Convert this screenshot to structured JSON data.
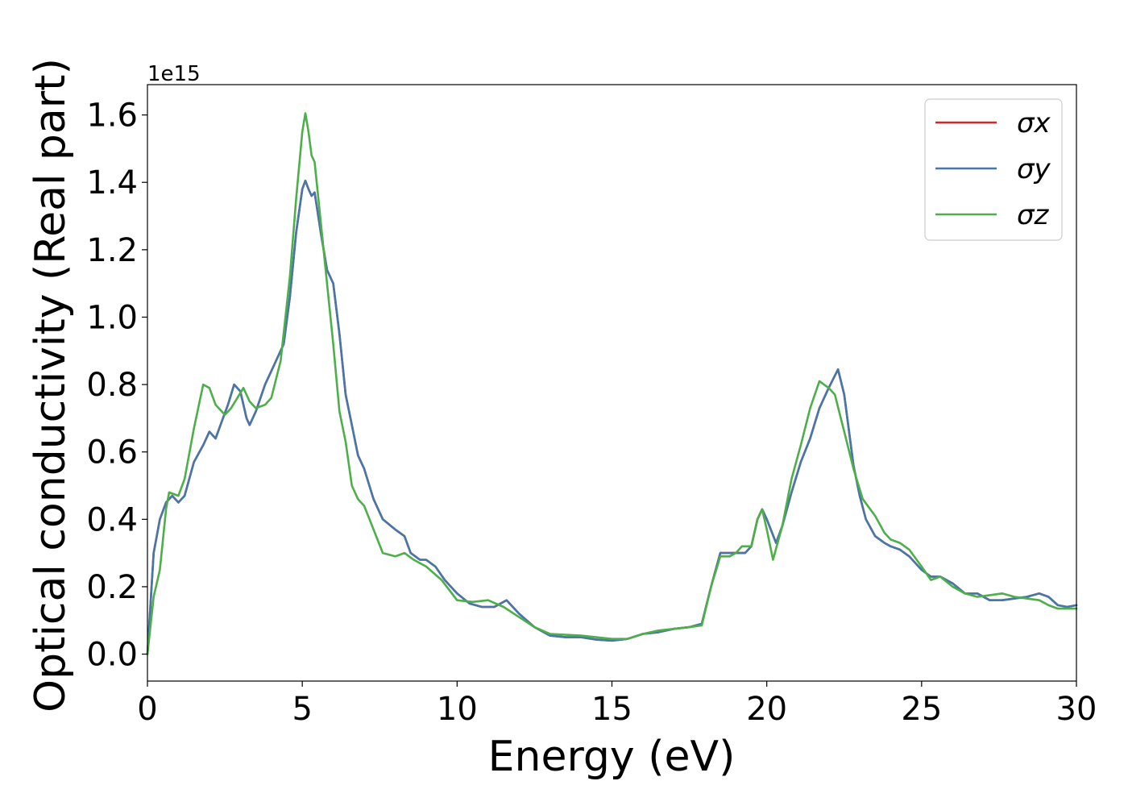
{
  "chart_data": {
    "type": "line",
    "xlabel": "Energy (eV)",
    "ylabel": "Optical conductivity (Real part)",
    "y_offset_text": "1e15",
    "xlim": [
      0,
      30
    ],
    "ylim": [
      -0.08,
      1.69
    ],
    "x_ticks": [
      0,
      5,
      10,
      15,
      20,
      25,
      30
    ],
    "y_ticks": [
      0.0,
      0.2,
      0.4,
      0.6,
      0.8,
      1.0,
      1.2,
      1.4,
      1.6
    ],
    "grid": false,
    "legend_position": "top-right",
    "series": [
      {
        "name": "σx",
        "color": "#d62728",
        "points": [
          [
            0,
            0.0
          ],
          [
            0.2,
            0.3
          ],
          [
            0.4,
            0.4
          ],
          [
            0.6,
            0.45
          ],
          [
            0.8,
            0.47
          ],
          [
            1.0,
            0.45
          ],
          [
            1.2,
            0.47
          ],
          [
            1.5,
            0.57
          ],
          [
            1.8,
            0.62
          ],
          [
            2.0,
            0.66
          ],
          [
            2.2,
            0.64
          ],
          [
            2.4,
            0.69
          ],
          [
            2.6,
            0.74
          ],
          [
            2.8,
            0.8
          ],
          [
            3.0,
            0.78
          ],
          [
            3.2,
            0.7
          ],
          [
            3.3,
            0.68
          ],
          [
            3.5,
            0.72
          ],
          [
            3.8,
            0.8
          ],
          [
            4.1,
            0.86
          ],
          [
            4.4,
            0.92
          ],
          [
            4.6,
            1.06
          ],
          [
            4.8,
            1.25
          ],
          [
            5.0,
            1.38
          ],
          [
            5.1,
            1.405
          ],
          [
            5.2,
            1.38
          ],
          [
            5.3,
            1.36
          ],
          [
            5.4,
            1.37
          ],
          [
            5.6,
            1.25
          ],
          [
            5.8,
            1.14
          ],
          [
            6.0,
            1.1
          ],
          [
            6.2,
            0.95
          ],
          [
            6.4,
            0.77
          ],
          [
            6.6,
            0.68
          ],
          [
            6.8,
            0.59
          ],
          [
            7.0,
            0.55
          ],
          [
            7.3,
            0.46
          ],
          [
            7.6,
            0.4
          ],
          [
            8.0,
            0.37
          ],
          [
            8.3,
            0.35
          ],
          [
            8.5,
            0.3
          ],
          [
            8.8,
            0.28
          ],
          [
            9.0,
            0.28
          ],
          [
            9.3,
            0.26
          ],
          [
            9.6,
            0.22
          ],
          [
            10.0,
            0.18
          ],
          [
            10.4,
            0.15
          ],
          [
            10.8,
            0.14
          ],
          [
            11.2,
            0.14
          ],
          [
            11.6,
            0.16
          ],
          [
            12.0,
            0.12
          ],
          [
            12.5,
            0.08
          ],
          [
            13.0,
            0.055
          ],
          [
            13.5,
            0.05
          ],
          [
            14.0,
            0.05
          ],
          [
            14.5,
            0.043
          ],
          [
            15.0,
            0.04
          ],
          [
            15.5,
            0.045
          ],
          [
            16.0,
            0.06
          ],
          [
            16.5,
            0.065
          ],
          [
            17.0,
            0.075
          ],
          [
            17.5,
            0.08
          ],
          [
            17.9,
            0.09
          ],
          [
            18.2,
            0.2
          ],
          [
            18.5,
            0.3
          ],
          [
            18.8,
            0.3
          ],
          [
            19.0,
            0.3
          ],
          [
            19.3,
            0.3
          ],
          [
            19.5,
            0.32
          ],
          [
            19.7,
            0.4
          ],
          [
            19.85,
            0.43
          ],
          [
            20.0,
            0.4
          ],
          [
            20.3,
            0.33
          ],
          [
            20.5,
            0.38
          ],
          [
            20.8,
            0.48
          ],
          [
            21.1,
            0.57
          ],
          [
            21.4,
            0.64
          ],
          [
            21.7,
            0.73
          ],
          [
            22.0,
            0.79
          ],
          [
            22.3,
            0.845
          ],
          [
            22.5,
            0.77
          ],
          [
            22.8,
            0.56
          ],
          [
            23.0,
            0.47
          ],
          [
            23.2,
            0.4
          ],
          [
            23.5,
            0.35
          ],
          [
            23.8,
            0.33
          ],
          [
            24.0,
            0.32
          ],
          [
            24.3,
            0.31
          ],
          [
            24.6,
            0.29
          ],
          [
            25.0,
            0.25
          ],
          [
            25.3,
            0.23
          ],
          [
            25.6,
            0.23
          ],
          [
            26.0,
            0.21
          ],
          [
            26.4,
            0.18
          ],
          [
            26.8,
            0.18
          ],
          [
            27.2,
            0.16
          ],
          [
            27.6,
            0.16
          ],
          [
            28.0,
            0.165
          ],
          [
            28.4,
            0.17
          ],
          [
            28.8,
            0.18
          ],
          [
            29.1,
            0.17
          ],
          [
            29.4,
            0.145
          ],
          [
            29.7,
            0.14
          ],
          [
            30.0,
            0.145
          ]
        ]
      },
      {
        "name": "σy",
        "color": "#4477aa",
        "points": [
          [
            0,
            0.0
          ],
          [
            0.2,
            0.3
          ],
          [
            0.4,
            0.4
          ],
          [
            0.6,
            0.45
          ],
          [
            0.8,
            0.47
          ],
          [
            1.0,
            0.45
          ],
          [
            1.2,
            0.47
          ],
          [
            1.5,
            0.57
          ],
          [
            1.8,
            0.62
          ],
          [
            2.0,
            0.66
          ],
          [
            2.2,
            0.64
          ],
          [
            2.4,
            0.69
          ],
          [
            2.6,
            0.74
          ],
          [
            2.8,
            0.8
          ],
          [
            3.0,
            0.78
          ],
          [
            3.2,
            0.7
          ],
          [
            3.3,
            0.68
          ],
          [
            3.5,
            0.72
          ],
          [
            3.8,
            0.8
          ],
          [
            4.1,
            0.86
          ],
          [
            4.4,
            0.92
          ],
          [
            4.6,
            1.06
          ],
          [
            4.8,
            1.25
          ],
          [
            5.0,
            1.38
          ],
          [
            5.1,
            1.405
          ],
          [
            5.2,
            1.38
          ],
          [
            5.3,
            1.36
          ],
          [
            5.4,
            1.37
          ],
          [
            5.6,
            1.25
          ],
          [
            5.8,
            1.14
          ],
          [
            6.0,
            1.1
          ],
          [
            6.2,
            0.95
          ],
          [
            6.4,
            0.77
          ],
          [
            6.6,
            0.68
          ],
          [
            6.8,
            0.59
          ],
          [
            7.0,
            0.55
          ],
          [
            7.3,
            0.46
          ],
          [
            7.6,
            0.4
          ],
          [
            8.0,
            0.37
          ],
          [
            8.3,
            0.35
          ],
          [
            8.5,
            0.3
          ],
          [
            8.8,
            0.28
          ],
          [
            9.0,
            0.28
          ],
          [
            9.3,
            0.26
          ],
          [
            9.6,
            0.22
          ],
          [
            10.0,
            0.18
          ],
          [
            10.4,
            0.15
          ],
          [
            10.8,
            0.14
          ],
          [
            11.2,
            0.14
          ],
          [
            11.6,
            0.16
          ],
          [
            12.0,
            0.12
          ],
          [
            12.5,
            0.08
          ],
          [
            13.0,
            0.055
          ],
          [
            13.5,
            0.05
          ],
          [
            14.0,
            0.05
          ],
          [
            14.5,
            0.043
          ],
          [
            15.0,
            0.04
          ],
          [
            15.5,
            0.045
          ],
          [
            16.0,
            0.06
          ],
          [
            16.5,
            0.065
          ],
          [
            17.0,
            0.075
          ],
          [
            17.5,
            0.08
          ],
          [
            17.9,
            0.09
          ],
          [
            18.2,
            0.2
          ],
          [
            18.5,
            0.3
          ],
          [
            18.8,
            0.3
          ],
          [
            19.0,
            0.3
          ],
          [
            19.3,
            0.3
          ],
          [
            19.5,
            0.32
          ],
          [
            19.7,
            0.4
          ],
          [
            19.85,
            0.43
          ],
          [
            20.0,
            0.4
          ],
          [
            20.3,
            0.33
          ],
          [
            20.5,
            0.38
          ],
          [
            20.8,
            0.48
          ],
          [
            21.1,
            0.57
          ],
          [
            21.4,
            0.64
          ],
          [
            21.7,
            0.73
          ],
          [
            22.0,
            0.79
          ],
          [
            22.3,
            0.845
          ],
          [
            22.5,
            0.77
          ],
          [
            22.8,
            0.56
          ],
          [
            23.0,
            0.47
          ],
          [
            23.2,
            0.4
          ],
          [
            23.5,
            0.35
          ],
          [
            23.8,
            0.33
          ],
          [
            24.0,
            0.32
          ],
          [
            24.3,
            0.31
          ],
          [
            24.6,
            0.29
          ],
          [
            25.0,
            0.25
          ],
          [
            25.3,
            0.23
          ],
          [
            25.6,
            0.23
          ],
          [
            26.0,
            0.21
          ],
          [
            26.4,
            0.18
          ],
          [
            26.8,
            0.18
          ],
          [
            27.2,
            0.16
          ],
          [
            27.6,
            0.16
          ],
          [
            28.0,
            0.165
          ],
          [
            28.4,
            0.17
          ],
          [
            28.8,
            0.18
          ],
          [
            29.1,
            0.17
          ],
          [
            29.4,
            0.145
          ],
          [
            29.7,
            0.14
          ],
          [
            30.0,
            0.145
          ]
        ]
      },
      {
        "name": "σz",
        "color": "#4daf4a",
        "points": [
          [
            0,
            0.0
          ],
          [
            0.2,
            0.17
          ],
          [
            0.4,
            0.25
          ],
          [
            0.6,
            0.43
          ],
          [
            0.7,
            0.48
          ],
          [
            1.0,
            0.47
          ],
          [
            1.2,
            0.52
          ],
          [
            1.5,
            0.67
          ],
          [
            1.8,
            0.8
          ],
          [
            2.0,
            0.79
          ],
          [
            2.2,
            0.74
          ],
          [
            2.5,
            0.71
          ],
          [
            2.7,
            0.73
          ],
          [
            2.9,
            0.76
          ],
          [
            3.1,
            0.79
          ],
          [
            3.3,
            0.75
          ],
          [
            3.5,
            0.73
          ],
          [
            3.8,
            0.74
          ],
          [
            4.0,
            0.76
          ],
          [
            4.3,
            0.87
          ],
          [
            4.6,
            1.12
          ],
          [
            4.8,
            1.35
          ],
          [
            5.0,
            1.55
          ],
          [
            5.1,
            1.605
          ],
          [
            5.2,
            1.55
          ],
          [
            5.3,
            1.48
          ],
          [
            5.4,
            1.46
          ],
          [
            5.6,
            1.28
          ],
          [
            5.8,
            1.1
          ],
          [
            6.0,
            0.92
          ],
          [
            6.2,
            0.72
          ],
          [
            6.4,
            0.63
          ],
          [
            6.6,
            0.5
          ],
          [
            6.8,
            0.46
          ],
          [
            7.0,
            0.44
          ],
          [
            7.3,
            0.37
          ],
          [
            7.6,
            0.3
          ],
          [
            8.0,
            0.29
          ],
          [
            8.3,
            0.3
          ],
          [
            8.6,
            0.28
          ],
          [
            9.0,
            0.26
          ],
          [
            9.5,
            0.22
          ],
          [
            10.0,
            0.16
          ],
          [
            10.5,
            0.155
          ],
          [
            11.0,
            0.16
          ],
          [
            11.5,
            0.14
          ],
          [
            12.0,
            0.11
          ],
          [
            12.5,
            0.08
          ],
          [
            13.0,
            0.06
          ],
          [
            14.0,
            0.055
          ],
          [
            15.0,
            0.045
          ],
          [
            15.5,
            0.045
          ],
          [
            16.0,
            0.06
          ],
          [
            16.5,
            0.07
          ],
          [
            17.0,
            0.075
          ],
          [
            17.5,
            0.08
          ],
          [
            17.9,
            0.085
          ],
          [
            18.2,
            0.2
          ],
          [
            18.5,
            0.29
          ],
          [
            18.8,
            0.29
          ],
          [
            19.0,
            0.3
          ],
          [
            19.2,
            0.32
          ],
          [
            19.5,
            0.32
          ],
          [
            19.7,
            0.4
          ],
          [
            19.85,
            0.43
          ],
          [
            20.0,
            0.37
          ],
          [
            20.2,
            0.28
          ],
          [
            20.5,
            0.38
          ],
          [
            20.8,
            0.52
          ],
          [
            21.1,
            0.62
          ],
          [
            21.4,
            0.73
          ],
          [
            21.7,
            0.81
          ],
          [
            22.0,
            0.79
          ],
          [
            22.2,
            0.77
          ],
          [
            22.5,
            0.66
          ],
          [
            22.8,
            0.55
          ],
          [
            23.1,
            0.46
          ],
          [
            23.5,
            0.41
          ],
          [
            23.8,
            0.36
          ],
          [
            24.0,
            0.34
          ],
          [
            24.3,
            0.33
          ],
          [
            24.6,
            0.31
          ],
          [
            25.0,
            0.26
          ],
          [
            25.3,
            0.22
          ],
          [
            25.6,
            0.23
          ],
          [
            26.0,
            0.2
          ],
          [
            26.4,
            0.18
          ],
          [
            26.8,
            0.17
          ],
          [
            27.2,
            0.175
          ],
          [
            27.6,
            0.18
          ],
          [
            28.0,
            0.17
          ],
          [
            28.4,
            0.165
          ],
          [
            28.8,
            0.16
          ],
          [
            29.1,
            0.145
          ],
          [
            29.4,
            0.135
          ],
          [
            29.7,
            0.135
          ],
          [
            30.0,
            0.135
          ]
        ]
      }
    ]
  }
}
